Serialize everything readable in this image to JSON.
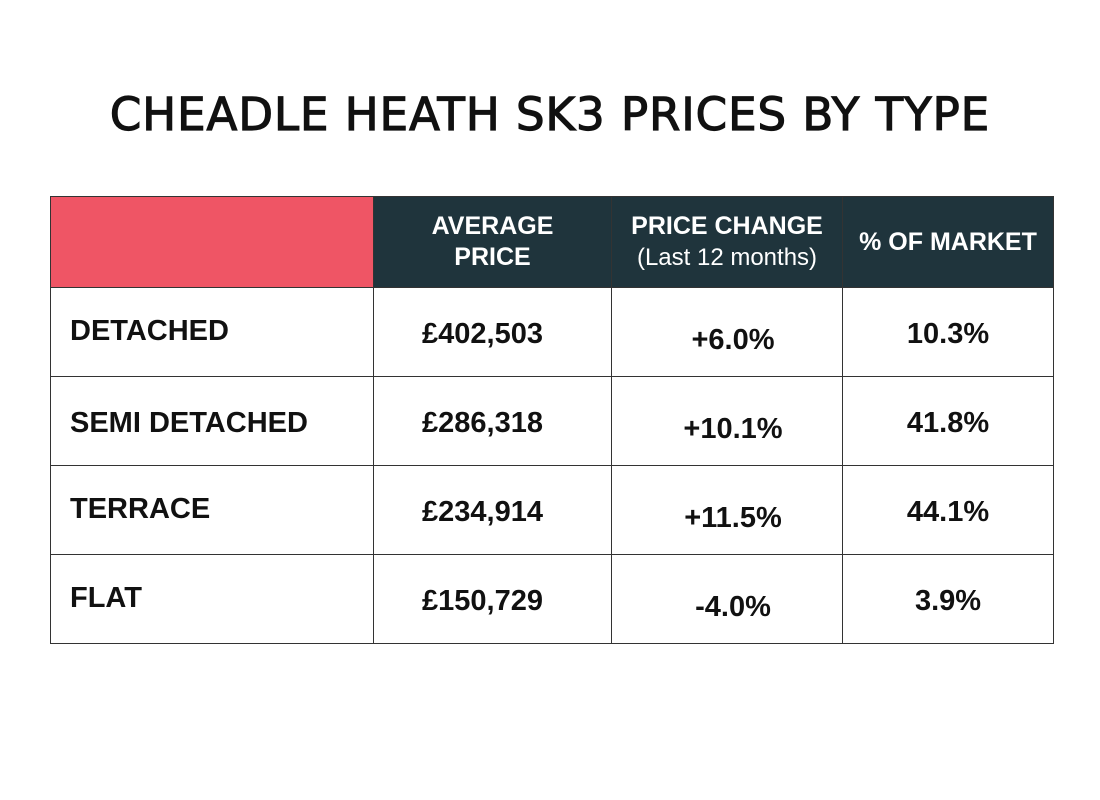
{
  "title": "CHEADLE HEATH SK3 PRICES BY TYPE",
  "colors": {
    "corner": "#ef5565",
    "header": "#1f343c"
  },
  "headers": {
    "average_price": [
      "AVERAGE",
      "PRICE"
    ],
    "price_change": [
      "PRICE CHANGE",
      "(Last 12 months)"
    ],
    "market_share": "% OF MARKET"
  },
  "rows": [
    {
      "type": "DETACHED",
      "average_price": "£402,503",
      "price_change": "+6.0%",
      "market_share": "10.3%"
    },
    {
      "type": "SEMI DETACHED",
      "average_price": "£286,318",
      "price_change": "+10.1%",
      "market_share": "41.8%"
    },
    {
      "type": "TERRACE",
      "average_price": "£234,914",
      "price_change": "+11.5%",
      "market_share": "44.1%"
    },
    {
      "type": "FLAT",
      "average_price": "£150,729",
      "price_change": "-4.0%",
      "market_share": "3.9%"
    }
  ]
}
